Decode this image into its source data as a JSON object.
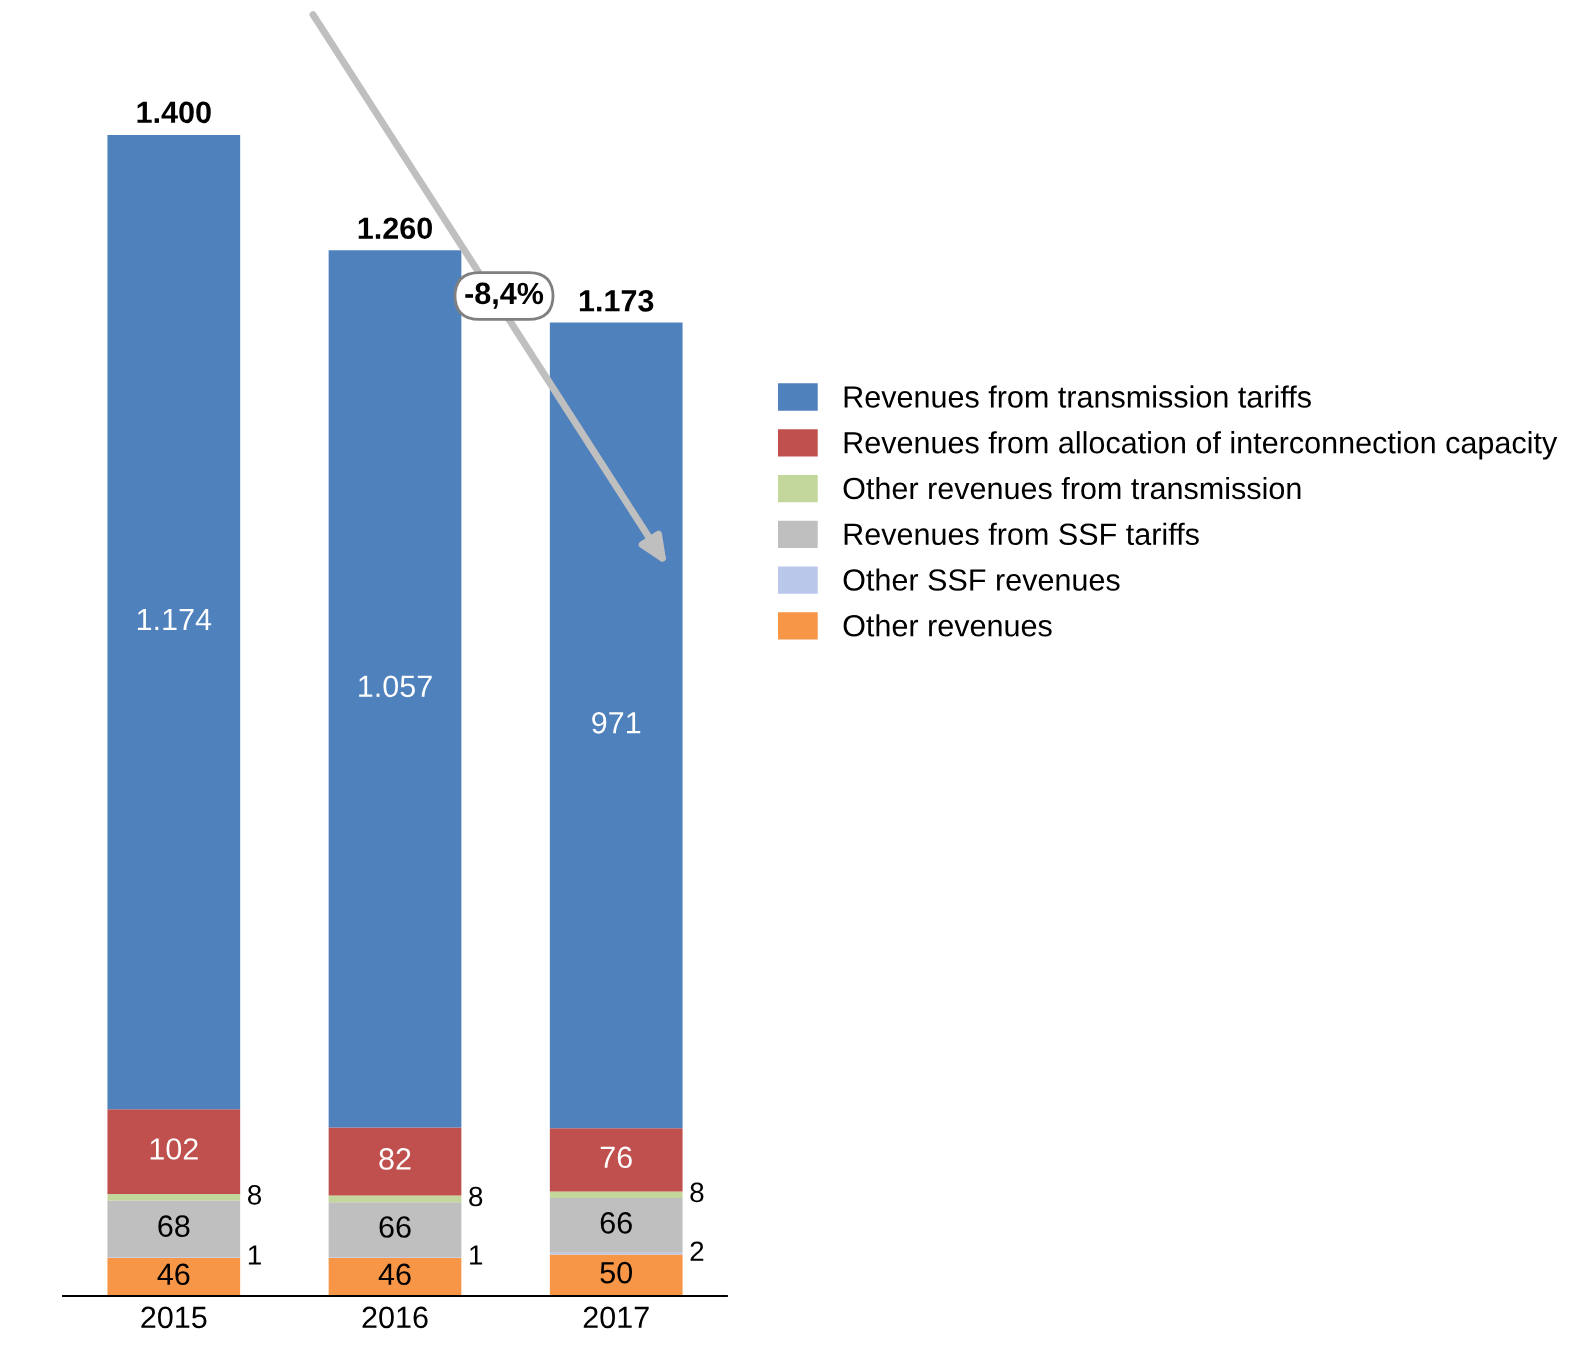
{
  "chart_data": {
    "type": "bar",
    "stacked": true,
    "categories": [
      "2015",
      "2016",
      "2017"
    ],
    "series": [
      {
        "name": "Other revenues",
        "color": "#f79646",
        "values": [
          46,
          46,
          50
        ],
        "value_labels": [
          "46",
          "46",
          "50"
        ]
      },
      {
        "name": "Other SSF revenues",
        "color": "#b9c7ea",
        "values": [
          1,
          1,
          2
        ],
        "value_labels": [
          "1",
          "1",
          "2"
        ]
      },
      {
        "name": "Revenues from SSF tariffs",
        "color": "#bfbfbf",
        "values": [
          68,
          66,
          66
        ],
        "value_labels": [
          "68",
          "66",
          "66"
        ]
      },
      {
        "name": "Other revenues from transmission",
        "color": "#c3d69b",
        "values": [
          8,
          8,
          8
        ],
        "value_labels": [
          "8",
          "8",
          "8"
        ]
      },
      {
        "name": "Revenues from allocation of interconnection capacity",
        "color": "#c0504d",
        "values": [
          102,
          82,
          76
        ],
        "value_labels": [
          "102",
          "82",
          "76"
        ]
      },
      {
        "name": "Revenues from transmission tariffs",
        "color": "#4f81bd",
        "values": [
          1174,
          1057,
          971
        ],
        "value_labels": [
          "1.174",
          "1.057",
          "971"
        ]
      }
    ],
    "totals": [
      "1.400",
      "1.260",
      "1.173"
    ],
    "annotations": [
      "-8,4%"
    ],
    "legend": "right",
    "grid": false,
    "tick_labels": "x"
  }
}
